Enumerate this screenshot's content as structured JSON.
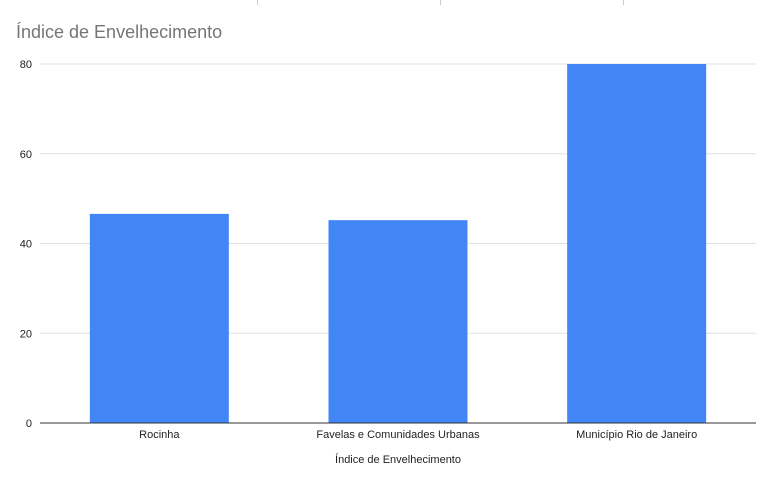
{
  "chart_data": {
    "type": "bar",
    "title": "Índice de Envelhecimento",
    "xlabel": "Índice de Envelhecimento",
    "ylabel": "",
    "categories": [
      "Rocinha",
      "Favelas e Comunidades Urbanas",
      "Município Rio de Janeiro"
    ],
    "values": [
      46.6,
      45.2,
      80.0
    ],
    "ylim": [
      0,
      80
    ],
    "yticks": [
      "0",
      "20",
      "40",
      "60",
      "80"
    ],
    "grid": true,
    "legend": "none",
    "colors": {
      "bar": "#4285f4",
      "grid": "#e0e0e0",
      "axis": "#333333",
      "title": "#757575",
      "text": "#222222"
    }
  }
}
